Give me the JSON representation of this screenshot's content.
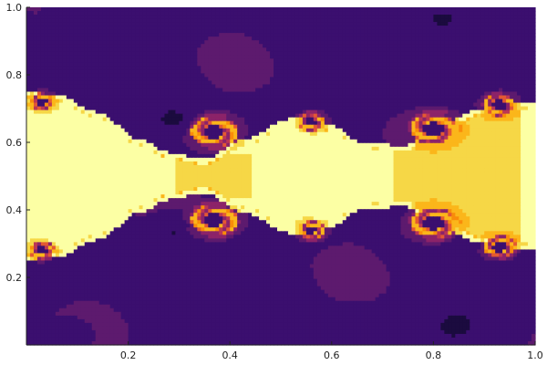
{
  "chart_data": {
    "type": "heatmap",
    "title": "",
    "xlabel": "",
    "ylabel": "",
    "xlim": [
      0,
      1
    ],
    "ylim": [
      0,
      1
    ],
    "grid": false,
    "legend": "none",
    "x_ticks": [
      {
        "value": 0.2,
        "label": "0.2"
      },
      {
        "value": 0.4,
        "label": "0.4"
      },
      {
        "value": 0.6,
        "label": "0.6"
      },
      {
        "value": 0.8,
        "label": "0.8"
      },
      {
        "value": 1.0,
        "label": "1.0"
      }
    ],
    "y_ticks": [
      {
        "value": 0.2,
        "label": "0.2"
      },
      {
        "value": 0.4,
        "label": "0.4"
      },
      {
        "value": 0.6,
        "label": "0.6"
      },
      {
        "value": 0.8,
        "label": "0.8"
      },
      {
        "value": 1.0,
        "label": "1.0"
      }
    ],
    "colormap": [
      "#1b0b3f",
      "#3b0f6f",
      "#5d1a6e",
      "#8c2369",
      "#bc3754",
      "#e35932",
      "#f98c0a",
      "#fbb61a",
      "#f6d746",
      "#fcffa4"
    ],
    "field": {
      "base_value": 0.18,
      "band_center_y": 0.5,
      "band_halfwidth": [
        {
          "x": 0.0,
          "h": 0.25
        },
        {
          "x": 0.06,
          "h": 0.24
        },
        {
          "x": 0.14,
          "h": 0.19
        },
        {
          "x": 0.22,
          "h": 0.11
        },
        {
          "x": 0.28,
          "h": 0.07
        },
        {
          "x": 0.35,
          "h": 0.05
        },
        {
          "x": 0.43,
          "h": 0.11
        },
        {
          "x": 0.52,
          "h": 0.17
        },
        {
          "x": 0.6,
          "h": 0.15
        },
        {
          "x": 0.66,
          "h": 0.1
        },
        {
          "x": 0.74,
          "h": 0.09
        },
        {
          "x": 0.82,
          "h": 0.16
        },
        {
          "x": 0.9,
          "h": 0.2
        },
        {
          "x": 1.0,
          "h": 0.22
        }
      ],
      "core_value": 0.93,
      "orange_region": {
        "x_from": 0.72,
        "x_to": 0.97,
        "value": 0.8
      },
      "vortices": [
        {
          "x": 0.03,
          "y": 0.72,
          "r": 0.04
        },
        {
          "x": 0.03,
          "y": 0.28,
          "r": 0.04
        },
        {
          "x": 0.37,
          "y": 0.63,
          "r": 0.07
        },
        {
          "x": 0.37,
          "y": 0.37,
          "r": 0.07
        },
        {
          "x": 0.56,
          "y": 0.66,
          "r": 0.04
        },
        {
          "x": 0.56,
          "y": 0.34,
          "r": 0.04
        },
        {
          "x": 0.8,
          "y": 0.64,
          "r": 0.07
        },
        {
          "x": 0.8,
          "y": 0.36,
          "r": 0.07
        },
        {
          "x": 0.93,
          "y": 0.71,
          "r": 0.05
        },
        {
          "x": 0.93,
          "y": 0.29,
          "r": 0.05
        }
      ],
      "dark_regions": [
        {
          "x": 0.29,
          "y": 0.67,
          "r": 0.08
        },
        {
          "x": 0.29,
          "y": 0.33,
          "r": 0.08
        },
        {
          "x": 0.83,
          "y": 0.97,
          "r": 0.18
        },
        {
          "x": 0.85,
          "y": 0.06,
          "r": 0.16
        },
        {
          "x": 0.08,
          "y": 0.97,
          "r": 0.06
        },
        {
          "x": 0.08,
          "y": 0.03,
          "r": 0.06
        }
      ]
    }
  }
}
